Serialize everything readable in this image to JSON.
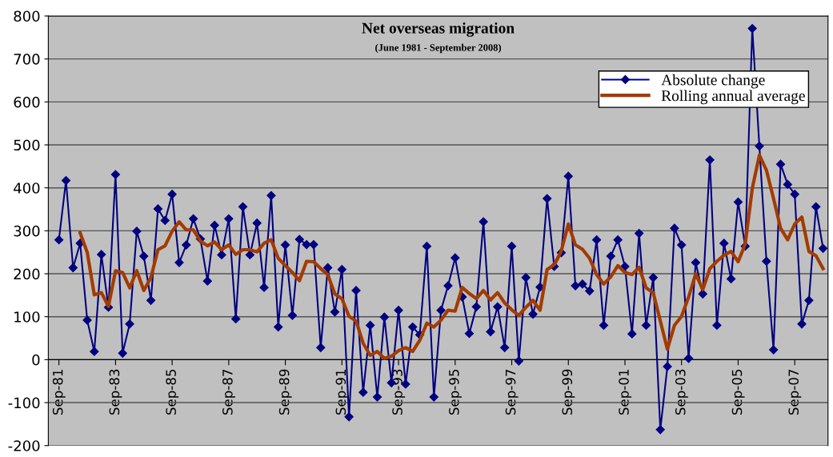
{
  "chart_data": {
    "type": "line",
    "title": "Net overseas migration",
    "subtitle": "(June 1981 - September 2008)",
    "categories": [
      "Sep-81",
      null,
      null,
      null,
      null,
      null,
      null,
      null,
      "Sep-83",
      null,
      null,
      null,
      null,
      null,
      null,
      null,
      "Sep-85",
      null,
      null,
      null,
      null,
      null,
      null,
      null,
      "Sep-87",
      null,
      null,
      null,
      null,
      null,
      null,
      null,
      "Sep-89",
      null,
      null,
      null,
      null,
      null,
      null,
      null,
      "Sep-91",
      null,
      null,
      null,
      null,
      null,
      null,
      null,
      "Sep-93",
      null,
      null,
      null,
      null,
      null,
      null,
      null,
      "Sep-95",
      null,
      null,
      null,
      null,
      null,
      null,
      null,
      "Sep-97",
      null,
      null,
      null,
      null,
      null,
      null,
      null,
      "Sep-99",
      null,
      null,
      null,
      null,
      null,
      null,
      null,
      "Sep-01",
      null,
      null,
      null,
      null,
      null,
      null,
      null,
      "Sep-03",
      null,
      null,
      null,
      null,
      null,
      null,
      null,
      "Sep-05",
      null,
      null,
      null,
      null,
      null,
      null,
      null,
      "Sep-07",
      null,
      null,
      null,
      null
    ],
    "series": [
      {
        "name": "Absolute change",
        "color": "#000080",
        "marker": "diamond",
        "values": [
          279,
          417,
          214,
          271,
          92,
          19,
          245,
          122,
          431,
          15,
          83,
          299,
          241,
          138,
          351,
          324,
          385,
          226,
          267,
          328,
          281,
          183,
          313,
          244,
          328,
          95,
          356,
          244,
          318,
          168,
          382,
          76,
          267,
          103,
          280,
          268,
          268,
          28,
          214,
          111,
          210,
          -133,
          161,
          -76,
          80,
          -87,
          99,
          -54,
          115,
          -57,
          76,
          58,
          264,
          -87,
          115,
          172,
          237,
          146,
          61,
          123,
          321,
          65,
          123,
          28,
          264,
          -3,
          191,
          106,
          169,
          375,
          217,
          249,
          427,
          172,
          176,
          160,
          279,
          80,
          241,
          279,
          217,
          60,
          294,
          80,
          191,
          -163,
          -16,
          306,
          267,
          3,
          226,
          153,
          465,
          80,
          271,
          188,
          367,
          264,
          771,
          497,
          229,
          23,
          455,
          408,
          385,
          83,
          138,
          356,
          259
        ]
      },
      {
        "name": "Rolling annual average",
        "color": "#a33b00",
        "marker": "none",
        "values": [
          null,
          null,
          null,
          295,
          250,
          151,
          156,
          124,
          207,
          203,
          167,
          207,
          161,
          191,
          256,
          265,
          299,
          321,
          302,
          302,
          276,
          265,
          274,
          256,
          267,
          245,
          256,
          256,
          251,
          271,
          279,
          236,
          219,
          203,
          184,
          229,
          228,
          212,
          198,
          153,
          142,
          101,
          90,
          38,
          10,
          19,
          3,
          8,
          21,
          28,
          19,
          45,
          85,
          76,
          92,
          115,
          113,
          168,
          154,
          142,
          161,
          139,
          156,
          132,
          116,
          103,
          122,
          138,
          115,
          210,
          221,
          253,
          316,
          267,
          257,
          236,
          198,
          176,
          193,
          219,
          203,
          198,
          215,
          167,
          156,
          90,
          24,
          80,
          101,
          146,
          200,
          163,
          212,
          229,
          243,
          252,
          228,
          269,
          399,
          476,
          441,
          375,
          306,
          279,
          316,
          332,
          252,
          242,
          212
        ]
      }
    ],
    "ylim": [
      -200,
      800
    ],
    "yticks": [
      -200,
      -100,
      0,
      100,
      200,
      300,
      400,
      500,
      600,
      700,
      800
    ],
    "grid": "y",
    "legend": "top right",
    "line_style": "solid"
  }
}
